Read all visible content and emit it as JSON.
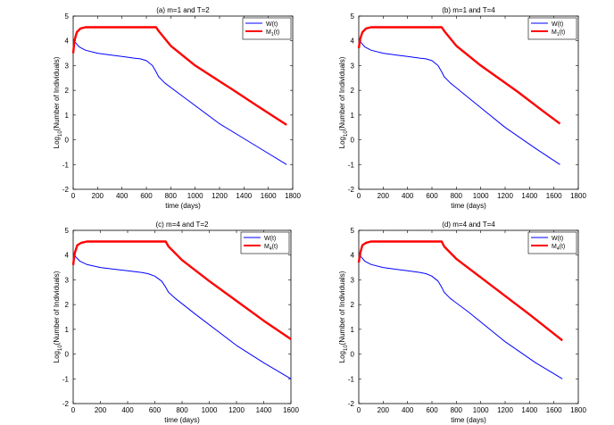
{
  "chart_data": [
    {
      "type": "line",
      "title": "(a) m=1 and T=2",
      "xlabel": "time (days)",
      "ylabel_main": "Log",
      "ylabel_sub": "10",
      "ylabel_rest": "(Number of Individuals)",
      "xlim": [
        0,
        1800
      ],
      "ylim": [
        -2,
        5
      ],
      "xticks": [
        "0",
        "200",
        "400",
        "600",
        "800",
        "1000",
        "1200",
        "1400",
        "1600",
        "1800"
      ],
      "yticks": [
        "-2",
        "-1",
        "0",
        "1",
        "2",
        "3",
        "4",
        "5"
      ],
      "legend_position": "top-right",
      "legend": [
        {
          "name": "W(t)",
          "sub": "",
          "color": "#0000ff"
        },
        {
          "name": "M",
          "sub": "1",
          "suffix": "(t)",
          "color": "#ff0000"
        }
      ],
      "series": [
        {
          "name": "W(t)",
          "color": "#0000ff",
          "x": [
            0,
            15,
            50,
            100,
            200,
            300,
            400,
            500,
            550,
            600,
            650,
            680,
            700,
            750,
            900,
            1200,
            1500,
            1750
          ],
          "y": [
            4.05,
            3.95,
            3.75,
            3.62,
            3.5,
            3.43,
            3.37,
            3.3,
            3.27,
            3.2,
            3.0,
            2.75,
            2.55,
            2.3,
            1.75,
            0.65,
            -0.25,
            -1.0
          ]
        },
        {
          "name": "M1(t)",
          "color": "#ff0000",
          "x": [
            0,
            10,
            30,
            60,
            100,
            200,
            400,
            600,
            680,
            700,
            800,
            1000,
            1300,
            1500,
            1750
          ],
          "y": [
            3.5,
            4.0,
            4.35,
            4.5,
            4.55,
            4.55,
            4.55,
            4.55,
            4.55,
            4.4,
            3.8,
            3.0,
            2.05,
            1.4,
            0.6
          ]
        }
      ]
    },
    {
      "type": "line",
      "title": "(b) m=1 and T=4",
      "xlabel": "time (days)",
      "ylabel_main": "Log",
      "ylabel_sub": "10",
      "ylabel_rest": "(Number of Individuals)",
      "xlim": [
        0,
        1800
      ],
      "ylim": [
        -2,
        5
      ],
      "xticks": [
        "0",
        "200",
        "400",
        "600",
        "800",
        "1000",
        "1200",
        "1400",
        "1600",
        "1800"
      ],
      "yticks": [
        "-2",
        "-1",
        "0",
        "1",
        "2",
        "3",
        "4",
        "5"
      ],
      "legend_position": "top-right",
      "legend": [
        {
          "name": "W(t)",
          "sub": "",
          "color": "#0000ff"
        },
        {
          "name": "M",
          "sub": "1",
          "suffix": "(t)",
          "color": "#ff0000"
        }
      ],
      "series": [
        {
          "name": "W(t)",
          "color": "#0000ff",
          "x": [
            0,
            15,
            50,
            100,
            200,
            300,
            400,
            500,
            550,
            600,
            650,
            680,
            700,
            750,
            900,
            1200,
            1450,
            1650
          ],
          "y": [
            4.05,
            3.95,
            3.75,
            3.62,
            3.5,
            3.43,
            3.37,
            3.3,
            3.27,
            3.2,
            3.0,
            2.75,
            2.55,
            2.3,
            1.7,
            0.5,
            -0.35,
            -1.0
          ]
        },
        {
          "name": "M1(t)",
          "color": "#ff0000",
          "x": [
            0,
            10,
            30,
            60,
            100,
            200,
            400,
            600,
            680,
            700,
            800,
            1000,
            1300,
            1500,
            1650
          ],
          "y": [
            3.7,
            4.05,
            4.35,
            4.5,
            4.55,
            4.55,
            4.55,
            4.55,
            4.55,
            4.4,
            3.8,
            3.0,
            1.95,
            1.2,
            0.65
          ]
        }
      ]
    },
    {
      "type": "line",
      "title": "(c) m=4 and T=2",
      "xlabel": "time (days)",
      "ylabel_main": "Log",
      "ylabel_sub": "10",
      "ylabel_rest": "(Number of Individuals)",
      "xlim": [
        0,
        1600
      ],
      "ylim": [
        -2,
        5
      ],
      "xticks": [
        "0",
        "200",
        "400",
        "600",
        "800",
        "1000",
        "1200",
        "1400",
        "1600"
      ],
      "yticks": [
        "-2",
        "-1",
        "0",
        "1",
        "2",
        "3",
        "4",
        "5"
      ],
      "legend_position": "top-right",
      "legend": [
        {
          "name": "W(t)",
          "sub": "",
          "color": "#0000ff"
        },
        {
          "name": "M",
          "sub": "4",
          "suffix": "(t)",
          "color": "#ff0000"
        }
      ],
      "series": [
        {
          "name": "W(t)",
          "color": "#0000ff",
          "x": [
            0,
            15,
            50,
            100,
            200,
            300,
            400,
            500,
            550,
            600,
            650,
            680,
            700,
            750,
            900,
            1200,
            1400,
            1600
          ],
          "y": [
            4.05,
            3.95,
            3.75,
            3.62,
            3.5,
            3.43,
            3.37,
            3.3,
            3.25,
            3.15,
            2.95,
            2.7,
            2.5,
            2.25,
            1.6,
            0.35,
            -0.35,
            -1.0
          ]
        },
        {
          "name": "M4(t)",
          "color": "#ff0000",
          "x": [
            0,
            10,
            30,
            60,
            100,
            200,
            400,
            600,
            680,
            700,
            800,
            1000,
            1200,
            1400,
            1600
          ],
          "y": [
            3.6,
            4.05,
            4.4,
            4.5,
            4.55,
            4.55,
            4.55,
            4.55,
            4.55,
            4.35,
            3.8,
            2.95,
            2.15,
            1.35,
            0.6
          ]
        }
      ]
    },
    {
      "type": "line",
      "title": "(d) m=4 and T=4",
      "xlabel": "time (days)",
      "ylabel_main": "Log",
      "ylabel_sub": "10",
      "ylabel_rest": "(Number of Individuals)",
      "xlim": [
        0,
        1800
      ],
      "ylim": [
        -2,
        5
      ],
      "xticks": [
        "0",
        "200",
        "400",
        "600",
        "800",
        "1000",
        "1200",
        "1400",
        "1600",
        "1800"
      ],
      "yticks": [
        "-2",
        "-1",
        "0",
        "1",
        "2",
        "3",
        "4",
        "5"
      ],
      "legend_position": "top-right",
      "legend": [
        {
          "name": "W(t)",
          "sub": "",
          "color": "#0000ff"
        },
        {
          "name": "M",
          "sub": "4",
          "suffix": "(t)",
          "color": "#ff0000"
        }
      ],
      "series": [
        {
          "name": "W(t)",
          "color": "#0000ff",
          "x": [
            0,
            15,
            50,
            100,
            200,
            300,
            400,
            500,
            550,
            600,
            650,
            680,
            700,
            750,
            900,
            1200,
            1450,
            1670
          ],
          "y": [
            4.05,
            3.95,
            3.75,
            3.62,
            3.5,
            3.43,
            3.37,
            3.3,
            3.25,
            3.15,
            2.95,
            2.7,
            2.5,
            2.25,
            1.7,
            0.5,
            -0.35,
            -1.0
          ]
        },
        {
          "name": "M4(t)",
          "color": "#ff0000",
          "x": [
            0,
            10,
            30,
            60,
            100,
            200,
            400,
            600,
            680,
            700,
            800,
            1000,
            1200,
            1400,
            1670
          ],
          "y": [
            3.7,
            4.05,
            4.4,
            4.5,
            4.55,
            4.55,
            4.55,
            4.55,
            4.55,
            4.35,
            3.85,
            3.1,
            2.35,
            1.6,
            0.55
          ]
        }
      ]
    }
  ]
}
